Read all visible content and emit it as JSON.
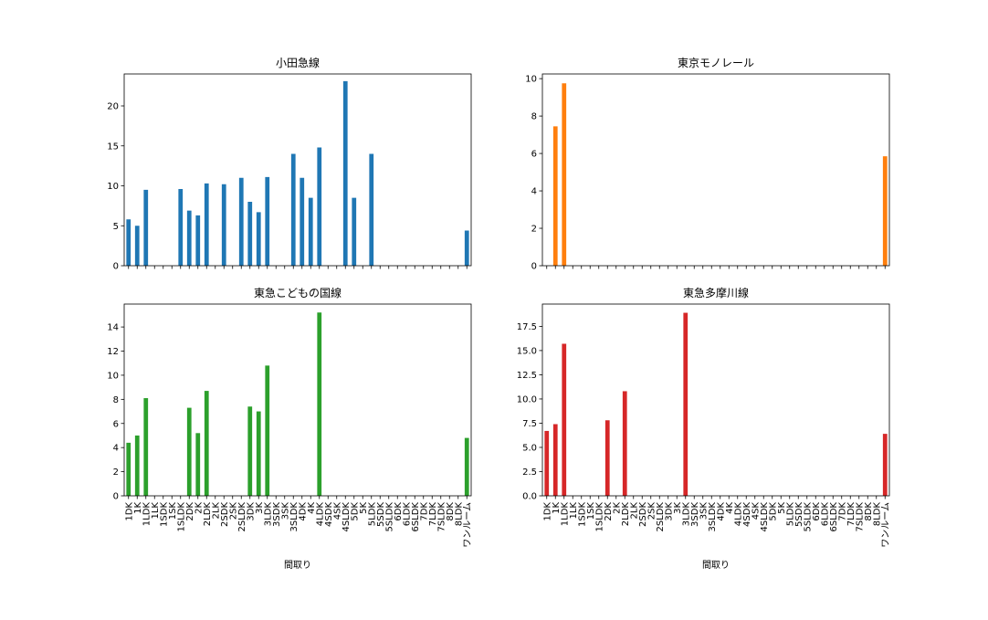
{
  "chart_data": {
    "type": "bar",
    "xlabel": "間取り",
    "categories": [
      "1DK",
      "1K",
      "1LDK",
      "1LK",
      "1SDK",
      "1SK",
      "1SLDK",
      "2DK",
      "2K",
      "2LDK",
      "2LK",
      "2SDK",
      "2SK",
      "2SLDK",
      "3DK",
      "3K",
      "3LDK",
      "3SDK",
      "3SK",
      "3SLDK",
      "4DK",
      "4K",
      "4LDK",
      "4SDK",
      "4SK",
      "4SLDK",
      "5DK",
      "5K",
      "5LDK",
      "5SDK",
      "5SLDK",
      "6DK",
      "6LDK",
      "6SLDK",
      "7DK",
      "7LDK",
      "7SLDK",
      "8DK",
      "8LDK",
      "ワンルーム"
    ],
    "panels": [
      {
        "title": "小田急線",
        "color": "#1f77b4",
        "ylim": [
          0,
          24
        ],
        "yticks": [
          "0",
          "5",
          "10",
          "15",
          "20"
        ],
        "values": [
          5.8,
          5.0,
          9.5,
          null,
          null,
          null,
          9.6,
          6.9,
          6.3,
          10.3,
          null,
          10.2,
          null,
          11.0,
          8.0,
          6.7,
          11.1,
          null,
          null,
          14.0,
          11.0,
          8.5,
          14.8,
          null,
          null,
          23.1,
          8.5,
          null,
          14.0,
          null,
          null,
          null,
          null,
          null,
          null,
          null,
          null,
          null,
          null,
          4.4
        ]
      },
      {
        "title": "東京モノレール",
        "color": "#ff7f0e",
        "ylim": [
          0,
          10.25
        ],
        "yticks": [
          "0",
          "2",
          "4",
          "6",
          "8",
          "10"
        ],
        "values": [
          null,
          7.45,
          9.75,
          null,
          null,
          null,
          null,
          null,
          null,
          null,
          null,
          null,
          null,
          null,
          null,
          null,
          null,
          null,
          null,
          null,
          null,
          null,
          null,
          null,
          null,
          null,
          null,
          null,
          null,
          null,
          null,
          null,
          null,
          null,
          null,
          null,
          null,
          null,
          null,
          5.85
        ]
      },
      {
        "title": "東急こどもの国線",
        "color": "#2ca02c",
        "ylim": [
          0,
          15.9
        ],
        "yticks": [
          "0",
          "2",
          "4",
          "6",
          "8",
          "10",
          "12",
          "14"
        ],
        "values": [
          4.4,
          5.0,
          8.1,
          null,
          null,
          null,
          null,
          7.3,
          5.2,
          8.7,
          null,
          null,
          null,
          null,
          7.4,
          7.0,
          10.8,
          null,
          null,
          null,
          null,
          null,
          15.2,
          null,
          null,
          null,
          null,
          null,
          null,
          null,
          null,
          null,
          null,
          null,
          null,
          null,
          null,
          null,
          null,
          4.8
        ]
      },
      {
        "title": "東急多摩川線",
        "color": "#d62728",
        "ylim": [
          0,
          19.8
        ],
        "yticks": [
          "0.0",
          "2.5",
          "5.0",
          "7.5",
          "10.0",
          "12.5",
          "15.0",
          "17.5"
        ],
        "values": [
          6.7,
          7.4,
          15.7,
          null,
          null,
          null,
          null,
          7.8,
          null,
          10.8,
          null,
          null,
          null,
          null,
          null,
          null,
          18.9,
          null,
          null,
          null,
          null,
          null,
          null,
          null,
          null,
          null,
          null,
          null,
          null,
          null,
          null,
          null,
          null,
          null,
          null,
          null,
          null,
          null,
          null,
          6.4
        ]
      }
    ]
  }
}
